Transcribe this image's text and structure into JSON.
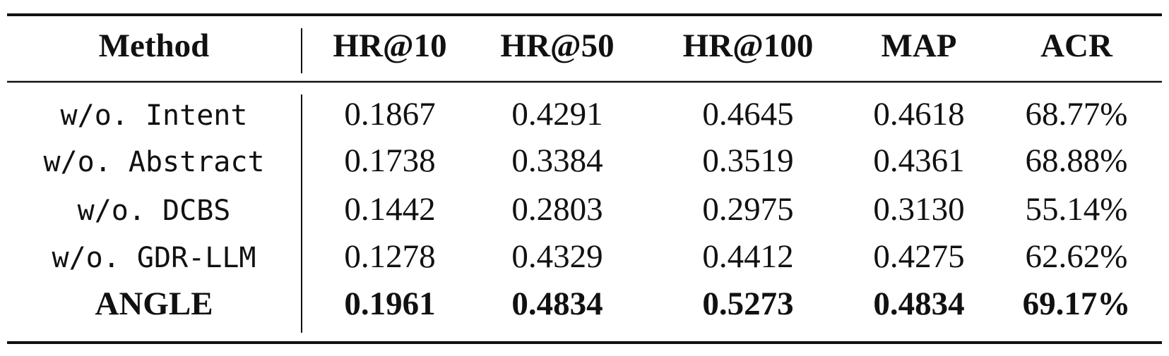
{
  "table": {
    "headers": [
      "Method",
      "HR@10",
      "HR@50",
      "HR@100",
      "MAP",
      "ACR"
    ],
    "rows": [
      [
        "w/o. Intent",
        "0.1867",
        "0.4291",
        "0.4645",
        "0.4618",
        "68.77%"
      ],
      [
        "w/o. Abstract",
        "0.1738",
        "0.3384",
        "0.3519",
        "0.4361",
        "68.88%"
      ],
      [
        "w/o. DCBS",
        "0.1442",
        "0.2803",
        "0.2975",
        "0.3130",
        "55.14%"
      ],
      [
        "w/o. GDR-LLM",
        "0.1278",
        "0.4329",
        "0.4412",
        "0.4275",
        "62.62%"
      ],
      [
        "ANGLE",
        "0.1961",
        "0.4834",
        "0.5273",
        "0.4834",
        "69.17%"
      ]
    ]
  }
}
